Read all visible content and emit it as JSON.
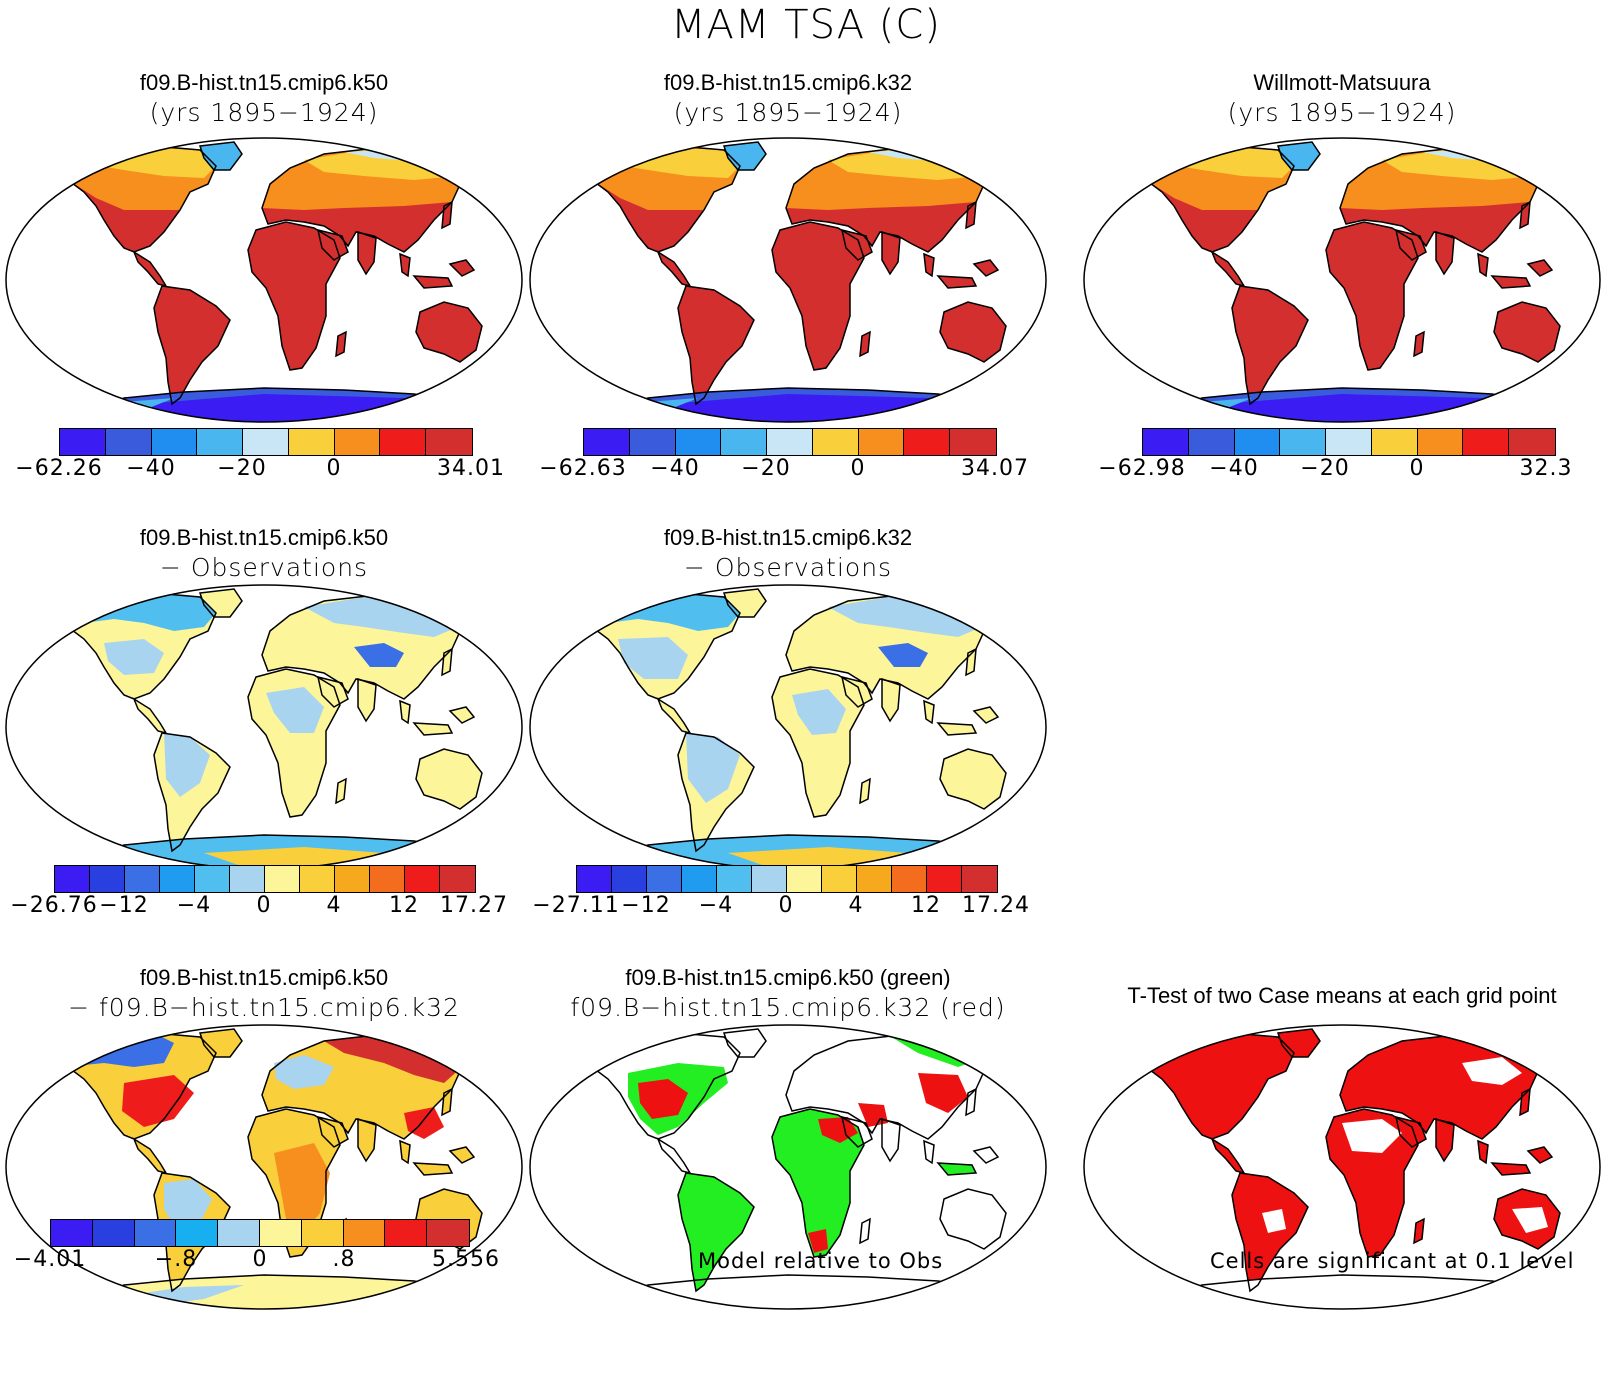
{
  "title": "MAM TSA (C)",
  "colors": {
    "abs_scale": [
      "#3b1cf2",
      "#3a5bdc",
      "#1f8ef0",
      "#4ab6f0",
      "#c8e6f6",
      "#f9cf3c",
      "#f78f1e",
      "#ef1c1c",
      "#d32f2f"
    ],
    "diff_scale": [
      "#3b1cf2",
      "#2a3fe0",
      "#3a6fe6",
      "#1f9cf0",
      "#50bff0",
      "#a9d4ef",
      "#fdf59a",
      "#f9cf3c",
      "#f7a91e",
      "#f46d1e",
      "#ef1c1c",
      "#d32f2f"
    ],
    "case_scale": [
      "#3b1cf2",
      "#2a3fe0",
      "#3a6fe6",
      "#17aff0",
      "#a9d4ef",
      "#fdf59a",
      "#f9cf3c",
      "#f78f1e",
      "#ef1c1c",
      "#d32f2f"
    ],
    "green": "#22ee22",
    "red": "#ee1111"
  },
  "panels": {
    "p1": {
      "title": "f09.B-hist.tn15.cmip6.k50",
      "subtitle": "(yrs 1895−1924)"
    },
    "p2": {
      "title": "f09.B-hist.tn15.cmip6.k32",
      "subtitle": "(yrs 1895−1924)"
    },
    "p3": {
      "title": "Willmott-Matsuura",
      "subtitle": "(yrs 1895−1924)"
    },
    "p4": {
      "title": "f09.B-hist.tn15.cmip6.k50",
      "subtitle": "− Observations"
    },
    "p5": {
      "title": "f09.B-hist.tn15.cmip6.k32",
      "subtitle": "− Observations"
    },
    "p6": {
      "title": "f09.B-hist.tn15.cmip6.k50",
      "subtitle": "− f09.B−hist.tn15.cmip6.k32"
    },
    "p7": {
      "title": "f09.B-hist.tn15.cmip6.k50 (green)",
      "subtitle": "f09.B−hist.tn15.cmip6.k32 (red)"
    },
    "p8": {
      "title": "T-Test of two Case means at each grid point"
    }
  },
  "colorbars": {
    "cb1": [
      "−62.26",
      "−40",
      "−20",
      "0",
      "34.01"
    ],
    "cb2": [
      "−62.63",
      "−40",
      "−20",
      "0",
      "34.07"
    ],
    "cb3": [
      "−62.98",
      "−40",
      "−20",
      "0",
      "32.3"
    ],
    "cb4": [
      "−26.76",
      "−12",
      "−4",
      "0",
      "4",
      "12",
      "17.27"
    ],
    "cb5": [
      "−27.11",
      "−12",
      "−4",
      "0",
      "4",
      "12",
      "17.24"
    ],
    "cb6": [
      "−4.01",
      "−.8",
      "0",
      ".8",
      "5.556"
    ]
  },
  "notes": {
    "model_rel": "Model relative to Obs",
    "significance": "Cells are significant at 0.1 level"
  }
}
